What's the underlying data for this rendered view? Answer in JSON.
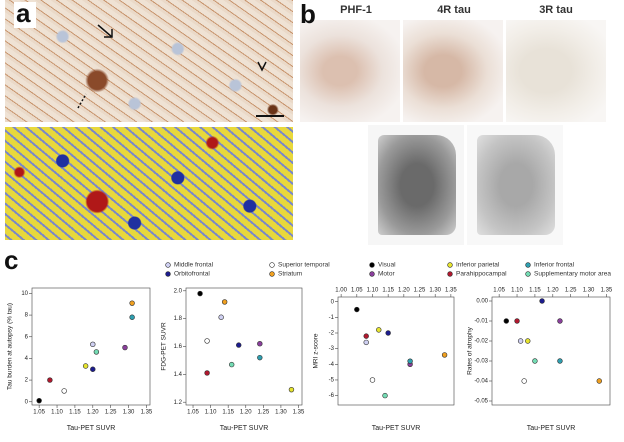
{
  "panels": {
    "a": "a",
    "b": "b",
    "c": "c"
  },
  "stain_labels": [
    "PHF-1",
    "4R tau",
    "3R tau"
  ],
  "legend": {
    "names": [
      "Middle frontal",
      "Orbitofrontal",
      "Superior temporal",
      "Striatum",
      "Visual",
      "Motor",
      "Inferior parietal",
      "Parahippocampal",
      "Inferior frontal",
      "Supplementary motor area"
    ],
    "colors": [
      "#cfd0f2",
      "#1c1c8e",
      "#ffffff",
      "#f0a020",
      "#000000",
      "#8a3f9c",
      "#e6e42e",
      "#b0182e",
      "#2e9fb0",
      "#74dcb4"
    ]
  },
  "chart_data": [
    {
      "type": "scatter",
      "ylabel": "Tau burden at autopsy (% tau)",
      "xlabel": "Tau-PET SUVR",
      "x_axis": "bottom",
      "x": [
        1.2,
        1.2,
        1.12,
        1.31,
        1.05,
        1.29,
        1.18,
        1.08,
        1.31,
        1.21
      ],
      "values": [
        5.3,
        3.0,
        1.0,
        9.1,
        0.1,
        5.0,
        3.3,
        2.0,
        7.8,
        4.6
      ],
      "xlim": [
        1.03,
        1.36
      ],
      "ylim": [
        -0.3,
        10.5
      ],
      "xticks": [
        1.05,
        {
          "value": 1.1,
          "label": "1.10"
        },
        1.15,
        {
          "value": 1.2,
          "label": "1.20"
        },
        1.25,
        {
          "value": 1.3,
          "label": "1.30"
        },
        1.35
      ],
      "yticks": [
        0,
        2,
        4,
        6,
        8,
        10
      ]
    },
    {
      "type": "scatter",
      "ylabel": "FDG-PET SUVR",
      "xlabel": "Tau-PET SUVR",
      "x_axis": "bottom",
      "x": [
        1.13,
        1.18,
        1.09,
        1.14,
        1.07,
        1.24,
        1.33,
        1.09,
        1.24,
        1.16
      ],
      "values": [
        1.81,
        1.61,
        1.64,
        1.92,
        1.98,
        1.62,
        1.29,
        1.41,
        1.52,
        1.47
      ],
      "xlim": [
        1.03,
        1.36
      ],
      "ylim": [
        1.18,
        2.02
      ],
      "xticks": [
        1.05,
        {
          "value": 1.1,
          "label": "1.10"
        },
        1.15,
        {
          "value": 1.2,
          "label": "1.20"
        },
        1.25,
        {
          "value": 1.3,
          "label": "1.30"
        },
        1.35
      ],
      "yticks": [
        1.2,
        1.4,
        1.6,
        1.8,
        {
          "value": 2,
          "label": "2.0"
        }
      ]
    },
    {
      "type": "scatter",
      "ylabel": "MRI z-score",
      "xlabel": "Tau-PET SUVR",
      "x_axis": "top",
      "x": [
        1.08,
        1.15,
        1.1,
        1.33,
        1.05,
        1.22,
        1.12,
        1.08,
        1.22,
        1.14
      ],
      "values": [
        -2.6,
        -2.0,
        -5.0,
        -3.4,
        -0.5,
        -4.0,
        -1.8,
        -2.2,
        -3.8,
        -6.0
      ],
      "xlim": [
        0.99,
        1.36
      ],
      "ylim": [
        -6.6,
        0.3
      ],
      "xticks": [
        {
          "value": 1,
          "label": "1.00"
        },
        1.05,
        {
          "value": 1.1,
          "label": "1.10"
        },
        1.15,
        {
          "value": 1.2,
          "label": "1.20"
        },
        1.25,
        {
          "value": 1.3,
          "label": "1.30"
        },
        1.35
      ],
      "yticks": [
        0,
        -1,
        -2,
        -3,
        -4,
        -5,
        -6
      ]
    },
    {
      "type": "scatter",
      "ylabel": "Rates of atrophy",
      "xlabel": "Tau-PET SUVR",
      "x_axis": "top",
      "x": [
        1.11,
        1.17,
        1.12,
        1.33,
        1.07,
        1.22,
        1.13,
        1.1,
        1.22,
        1.15
      ],
      "values": [
        -0.02,
        0,
        -0.04,
        -0.04,
        -0.01,
        -0.01,
        -0.02,
        -0.01,
        -0.03,
        -0.03
      ],
      "xlim": [
        1.03,
        1.36
      ],
      "ylim": [
        -0.052,
        0.002
      ],
      "xticks": [
        1.05,
        {
          "value": 1.1,
          "label": "1.10"
        },
        1.15,
        {
          "value": 1.2,
          "label": "1.20"
        },
        1.25,
        {
          "value": 1.3,
          "label": "1.30"
        },
        1.35
      ],
      "yticks": [
        {
          "value": 0,
          "label": "0.00"
        },
        -0.01,
        -0.02,
        -0.03,
        -0.04,
        -0.05
      ]
    }
  ]
}
